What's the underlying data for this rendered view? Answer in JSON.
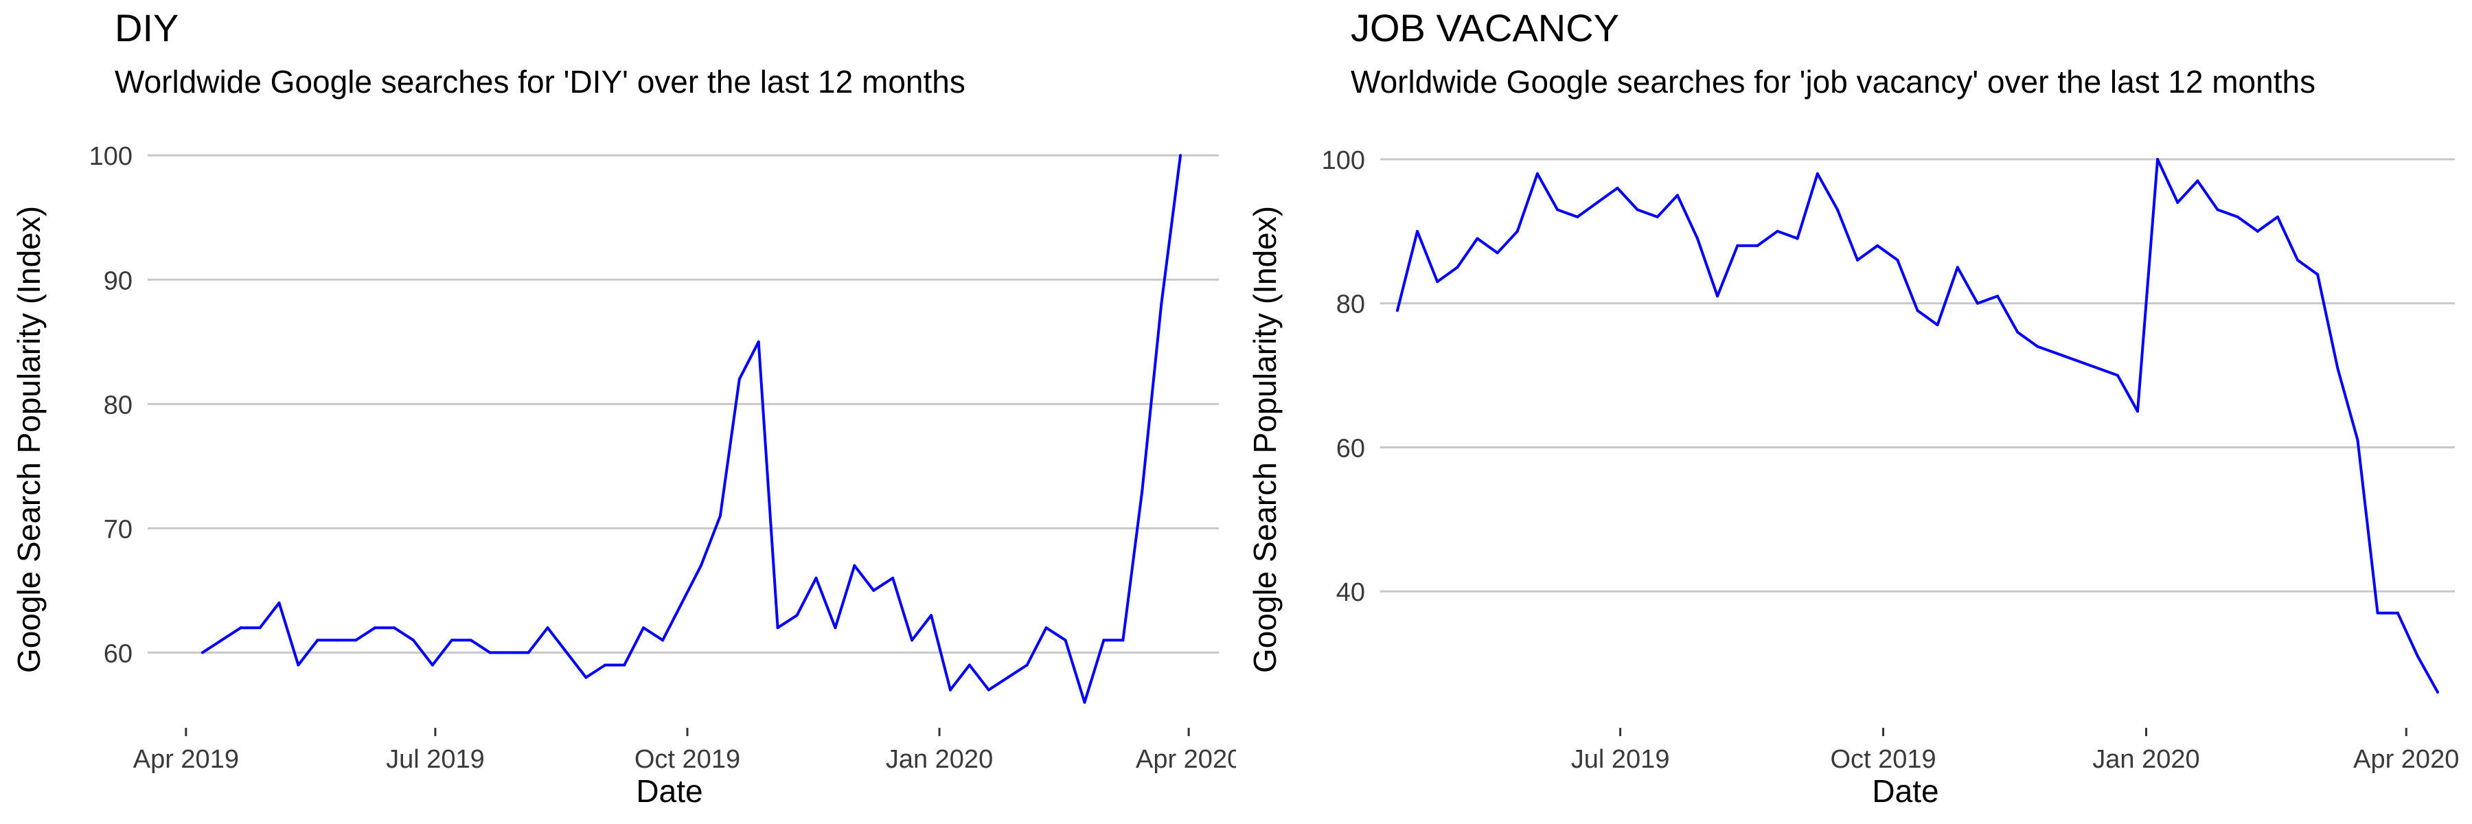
{
  "chart_data": [
    {
      "type": "line",
      "title": "DIY",
      "subtitle": "Worldwide Google searches for 'DIY' over the last 12 months",
      "xlabel": "Date",
      "ylabel": "Google Search Popularity (Index)",
      "xlim": [
        "2019-03-18",
        "2020-04-12"
      ],
      "ylim": [
        54.5,
        102
      ],
      "x_ticks": [
        "2019-04-01",
        "2019-07-01",
        "2019-10-01",
        "2020-01-01",
        "2020-04-01"
      ],
      "x_tick_labels": [
        "Apr 2019",
        "Jul 2019",
        "Oct 2019",
        "Jan 2020",
        "Apr 2020"
      ],
      "y_ticks": [
        60,
        70,
        80,
        90,
        100
      ],
      "grid": "horizontal major lines",
      "line_color": "#0000ff",
      "series": [
        {
          "x": [
            "2019-04-07",
            "2019-04-14",
            "2019-04-21",
            "2019-04-28",
            "2019-05-05",
            "2019-05-12",
            "2019-05-19",
            "2019-05-26",
            "2019-06-02",
            "2019-06-09",
            "2019-06-16",
            "2019-06-23",
            "2019-06-30",
            "2019-07-07",
            "2019-07-14",
            "2019-07-21",
            "2019-07-28",
            "2019-08-04",
            "2019-08-11",
            "2019-08-18",
            "2019-08-25",
            "2019-09-01",
            "2019-09-08",
            "2019-09-15",
            "2019-09-22",
            "2019-09-29",
            "2019-10-06",
            "2019-10-13",
            "2019-10-20",
            "2019-10-27",
            "2019-11-03",
            "2019-11-10",
            "2019-11-17",
            "2019-11-24",
            "2019-12-01",
            "2019-12-08",
            "2019-12-15",
            "2019-12-22",
            "2019-12-29",
            "2020-01-05",
            "2020-01-12",
            "2020-01-19",
            "2020-01-26",
            "2020-02-02",
            "2020-02-09",
            "2020-02-16",
            "2020-02-23",
            "2020-03-01",
            "2020-03-08",
            "2020-03-15",
            "2020-03-22",
            "2020-03-29"
          ],
          "values": [
            60,
            61,
            62,
            62,
            64,
            59,
            61,
            61,
            61,
            62,
            62,
            61,
            59,
            61,
            61,
            60,
            60,
            60,
            62,
            60,
            58,
            59,
            59,
            62,
            61,
            64,
            67,
            71,
            82,
            85,
            62,
            63,
            66,
            62,
            67,
            65,
            66,
            61,
            63,
            57,
            59,
            57,
            58,
            59,
            62,
            61,
            56,
            61,
            61,
            73,
            88,
            100
          ]
        }
      ]
    },
    {
      "type": "line",
      "title": "JOB VACANCY",
      "subtitle": "Worldwide Google searches for 'job vacancy' over the last 12 months",
      "xlabel": "Date",
      "ylabel": "Google Search Popularity (Index)",
      "xlim": [
        "2019-04-08",
        "2020-04-18"
      ],
      "ylim": [
        22,
        104
      ],
      "x_ticks": [
        "2019-07-01",
        "2019-10-01",
        "2020-01-01",
        "2020-04-01"
      ],
      "x_tick_labels": [
        "Jul 2019",
        "Oct 2019",
        "Jan 2020",
        "Apr 2020"
      ],
      "y_ticks": [
        40,
        60,
        80,
        100
      ],
      "grid": "horizontal major lines",
      "line_color": "#0000ff",
      "series": [
        {
          "x": [
            "2019-04-14",
            "2019-04-21",
            "2019-04-28",
            "2019-05-05",
            "2019-05-12",
            "2019-05-19",
            "2019-05-26",
            "2019-06-02",
            "2019-06-09",
            "2019-06-16",
            "2019-06-23",
            "2019-06-30",
            "2019-07-07",
            "2019-07-14",
            "2019-07-21",
            "2019-07-28",
            "2019-08-04",
            "2019-08-11",
            "2019-08-18",
            "2019-08-25",
            "2019-09-01",
            "2019-09-08",
            "2019-09-15",
            "2019-09-22",
            "2019-09-29",
            "2019-10-06",
            "2019-10-13",
            "2019-10-20",
            "2019-10-27",
            "2019-11-03",
            "2019-11-10",
            "2019-11-17",
            "2019-11-24",
            "2019-12-22",
            "2019-12-29",
            "2020-01-05",
            "2020-01-12",
            "2020-01-19",
            "2020-01-26",
            "2020-02-02",
            "2020-02-09",
            "2020-02-16",
            "2020-02-23",
            "2020-03-01",
            "2020-03-08",
            "2020-03-15",
            "2020-03-22",
            "2020-03-29",
            "2020-04-05",
            "2020-04-12"
          ],
          "values": [
            79,
            90,
            83,
            85,
            89,
            87,
            90,
            98,
            93,
            92,
            94,
            96,
            93,
            92,
            95,
            89,
            81,
            88,
            88,
            90,
            89,
            98,
            93,
            86,
            88,
            86,
            79,
            77,
            85,
            80,
            81,
            76,
            74,
            70,
            65,
            100,
            94,
            97,
            93,
            92,
            90,
            92,
            86,
            84,
            71,
            61,
            37,
            37,
            31,
            26
          ]
        }
      ]
    }
  ]
}
